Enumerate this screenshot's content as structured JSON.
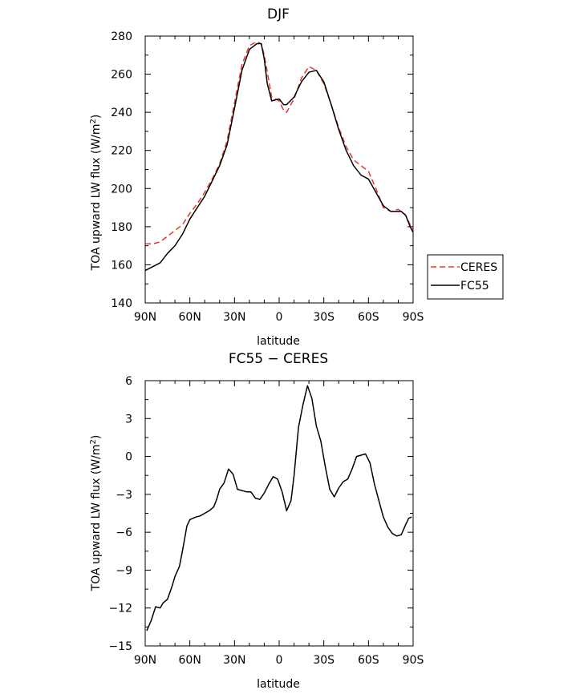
{
  "chart_data": [
    {
      "type": "line",
      "title": "DJF",
      "xlabel": "latitude",
      "ylabel": "TOA upward LW flux (W/m²)",
      "ylabel_parts": [
        "TOA upward LW flux (W/m",
        "2",
        ")"
      ],
      "xlim": [
        90,
        -90
      ],
      "ylim": [
        140,
        280
      ],
      "xticks": [
        90,
        60,
        30,
        0,
        -30,
        -60,
        -90
      ],
      "xticklabels": [
        "90N",
        "60N",
        "30N",
        "0",
        "30S",
        "60S",
        "90S"
      ],
      "yticks": [
        140,
        160,
        180,
        200,
        220,
        240,
        260,
        280
      ],
      "yticklabels": [
        "140",
        "160",
        "180",
        "200",
        "220",
        "240",
        "260",
        "280"
      ],
      "legend": "outside-right",
      "series": [
        {
          "name": "CERES",
          "color": "#e8352b",
          "dash": "dashed",
          "x": [
            90,
            85,
            80,
            75,
            70,
            65,
            60,
            55,
            50,
            45,
            40,
            35,
            30,
            25,
            20,
            15,
            12,
            10,
            5,
            0,
            -3,
            -5,
            -10,
            -15,
            -20,
            -25,
            -30,
            -35,
            -40,
            -45,
            -50,
            -55,
            -60,
            -65,
            -70,
            -75,
            -80,
            -82,
            -85,
            -88,
            -90
          ],
          "y": [
            171,
            171,
            172,
            175,
            178,
            181,
            187,
            192,
            198,
            205,
            213,
            225,
            245,
            265,
            275,
            277,
            276,
            270,
            248,
            246,
            241,
            240,
            247,
            258,
            264,
            262,
            255,
            244,
            232,
            222,
            215,
            212,
            209,
            200,
            190,
            188,
            189,
            188,
            186,
            181,
            178
          ]
        },
        {
          "name": "FC55",
          "color": "#000000",
          "dash": "solid",
          "x": [
            90,
            85,
            80,
            75,
            70,
            65,
            60,
            55,
            50,
            45,
            40,
            35,
            30,
            25,
            20,
            15,
            12,
            10,
            8,
            5,
            0,
            -3,
            -5,
            -10,
            -15,
            -20,
            -25,
            -30,
            -35,
            -40,
            -45,
            -50,
            -55,
            -60,
            -65,
            -70,
            -75,
            -80,
            -82,
            -85,
            -88,
            -90
          ],
          "y": [
            157,
            159,
            161,
            166,
            170,
            176,
            184,
            190,
            196,
            204,
            212,
            223,
            242,
            262,
            273,
            276,
            276,
            268,
            255,
            246,
            247,
            244,
            244,
            248,
            256,
            261,
            262,
            256,
            244,
            231,
            220,
            212,
            207,
            205,
            198,
            191,
            188,
            188,
            188,
            186,
            180,
            177
          ]
        }
      ]
    },
    {
      "type": "line",
      "title": "FC55 − CERES",
      "xlabel": "latitude",
      "ylabel": "TOA upward LW flux (W/m²)",
      "ylabel_parts": [
        "TOA upward LW flux (W/m",
        "2",
        ")"
      ],
      "xlim": [
        90,
        -90
      ],
      "ylim": [
        -15,
        6
      ],
      "xticks": [
        90,
        60,
        30,
        0,
        -30,
        -60,
        -90
      ],
      "xticklabels": [
        "90N",
        "60N",
        "30N",
        "0",
        "30S",
        "60S",
        "90S"
      ],
      "yticks": [
        -15,
        -12,
        -9,
        -6,
        -3,
        0,
        3,
        6
      ],
      "yticklabels": [
        "−15",
        "−12",
        "−9",
        "−6",
        "−3",
        "0",
        "3",
        "6"
      ],
      "series": [
        {
          "color": "#000000",
          "x": [
            89,
            86,
            83,
            80,
            78,
            75,
            72,
            70,
            67,
            65,
            62,
            60,
            56,
            53,
            50,
            47,
            44,
            42,
            40,
            37,
            34,
            31,
            28,
            25,
            22,
            19,
            16,
            13,
            10,
            7,
            4,
            1,
            -2,
            -5,
            -8,
            -10,
            -13,
            -16,
            -19,
            -22,
            -25,
            -28,
            -31,
            -34,
            -37,
            -40,
            -43,
            -46,
            -49,
            -52,
            -55,
            -58,
            -61,
            -64,
            -67,
            -70,
            -73,
            -76,
            -79,
            -82,
            -85,
            -87,
            -89
          ],
          "y": [
            -13.8,
            -13,
            -11.9,
            -12,
            -11.6,
            -11.3,
            -10.3,
            -9.5,
            -8.7,
            -7.5,
            -5.5,
            -5.0,
            -4.8,
            -4.7,
            -4.5,
            -4.3,
            -4.0,
            -3.4,
            -2.6,
            -2.1,
            -1.0,
            -1.4,
            -2.6,
            -2.7,
            -2.8,
            -2.8,
            -3.3,
            -3.4,
            -2.9,
            -2.2,
            -1.6,
            -1.8,
            -2.8,
            -4.3,
            -3.5,
            -1.5,
            2.3,
            4.1,
            5.6,
            4.6,
            2.4,
            1.2,
            -0.8,
            -2.6,
            -3.2,
            -2.5,
            -2.0,
            -1.8,
            -1.0,
            0.0,
            0.1,
            0.2,
            -0.5,
            -2.2,
            -3.5,
            -4.8,
            -5.6,
            -6.1,
            -6.3,
            -6.2,
            -5.4,
            -4.9,
            -4.8
          ]
        }
      ]
    }
  ],
  "legend": {
    "entries": [
      "CERES",
      "FC55"
    ]
  }
}
